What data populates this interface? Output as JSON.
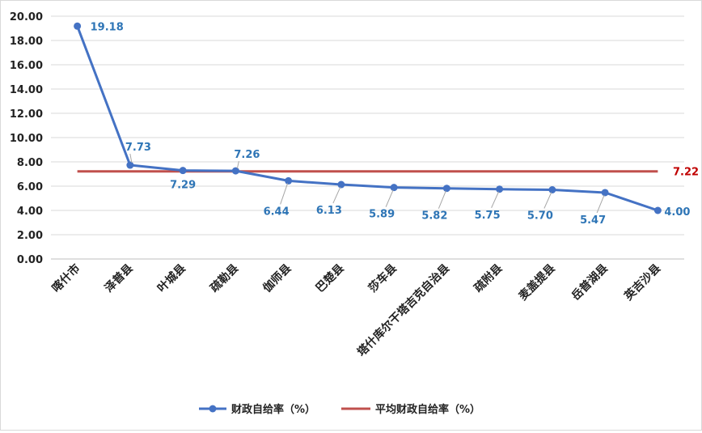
{
  "chart_data": {
    "type": "line",
    "categories": [
      "喀什市",
      "泽普县",
      "叶城县",
      "疏勒县",
      "伽师县",
      "巴楚县",
      "莎车县",
      "塔什库尔干塔吉克自治县",
      "疏附县",
      "麦盖提县",
      "岳普湖县",
      "英吉沙县"
    ],
    "series": [
      {
        "name": "财政自给率（%）",
        "values": [
          19.18,
          7.73,
          7.29,
          7.26,
          6.44,
          6.13,
          5.89,
          5.82,
          5.75,
          5.7,
          5.47,
          4.0
        ],
        "value_labels": [
          "19.18",
          "7.73",
          "7.29",
          "7.26",
          "6.44",
          "6.13",
          "5.89",
          "5.82",
          "5.75",
          "5.70",
          "5.47",
          "4.00"
        ],
        "color": "#4472c4"
      },
      {
        "name": "平均财政自给率（%）",
        "values": [
          7.22,
          7.22,
          7.22,
          7.22,
          7.22,
          7.22,
          7.22,
          7.22,
          7.22,
          7.22,
          7.22,
          7.22
        ],
        "end_label": "7.22",
        "color": "#c0504d"
      }
    ],
    "y_ticks": [
      "0.00",
      "2.00",
      "4.00",
      "6.00",
      "8.00",
      "10.00",
      "12.00",
      "14.00",
      "16.00",
      "18.00",
      "20.00"
    ],
    "ylim": [
      0,
      20
    ],
    "grid": true,
    "legend": "bottom"
  },
  "colors": {
    "grid": "#d9d9d9",
    "axis": "#bfbfbf",
    "label_blue": "#2e75b6",
    "label_red": "#c00000"
  }
}
